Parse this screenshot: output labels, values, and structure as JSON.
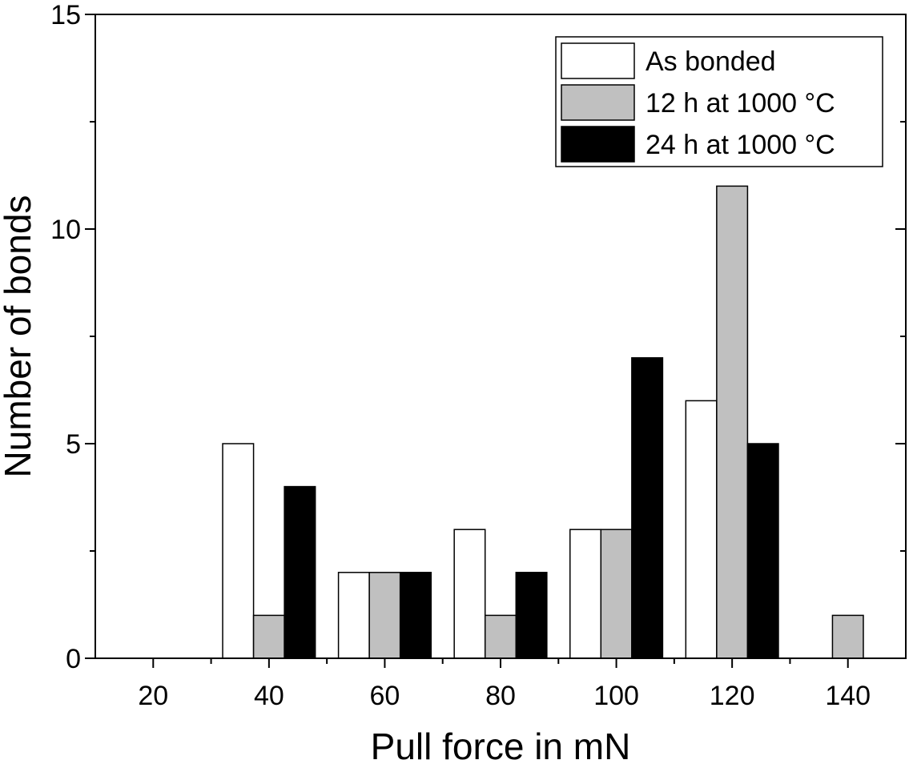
{
  "chart_data": {
    "type": "bar",
    "xlabel": "Pull force in mN",
    "ylabel": "Number of bonds",
    "xlim": [
      10,
      150
    ],
    "ylim": [
      0,
      15
    ],
    "xticks": [
      20,
      40,
      60,
      80,
      100,
      120,
      140
    ],
    "yticks": [
      0,
      5,
      10,
      15
    ],
    "categories": [
      20,
      40,
      60,
      80,
      100,
      120,
      140
    ],
    "series": [
      {
        "name": "As bonded",
        "color": "#ffffff",
        "values": [
          0,
          5,
          2,
          3,
          3,
          6,
          0
        ]
      },
      {
        "name": "12 h at 1000 °C",
        "color": "#c0c0c0",
        "values": [
          0,
          1,
          2,
          1,
          3,
          11,
          1
        ]
      },
      {
        "name": "24 h at 1000 °C",
        "color": "#000000",
        "values": [
          0,
          4,
          2,
          2,
          7,
          5,
          0
        ]
      }
    ],
    "bar_group_width": 16,
    "legend": "top-right",
    "grid": false
  }
}
